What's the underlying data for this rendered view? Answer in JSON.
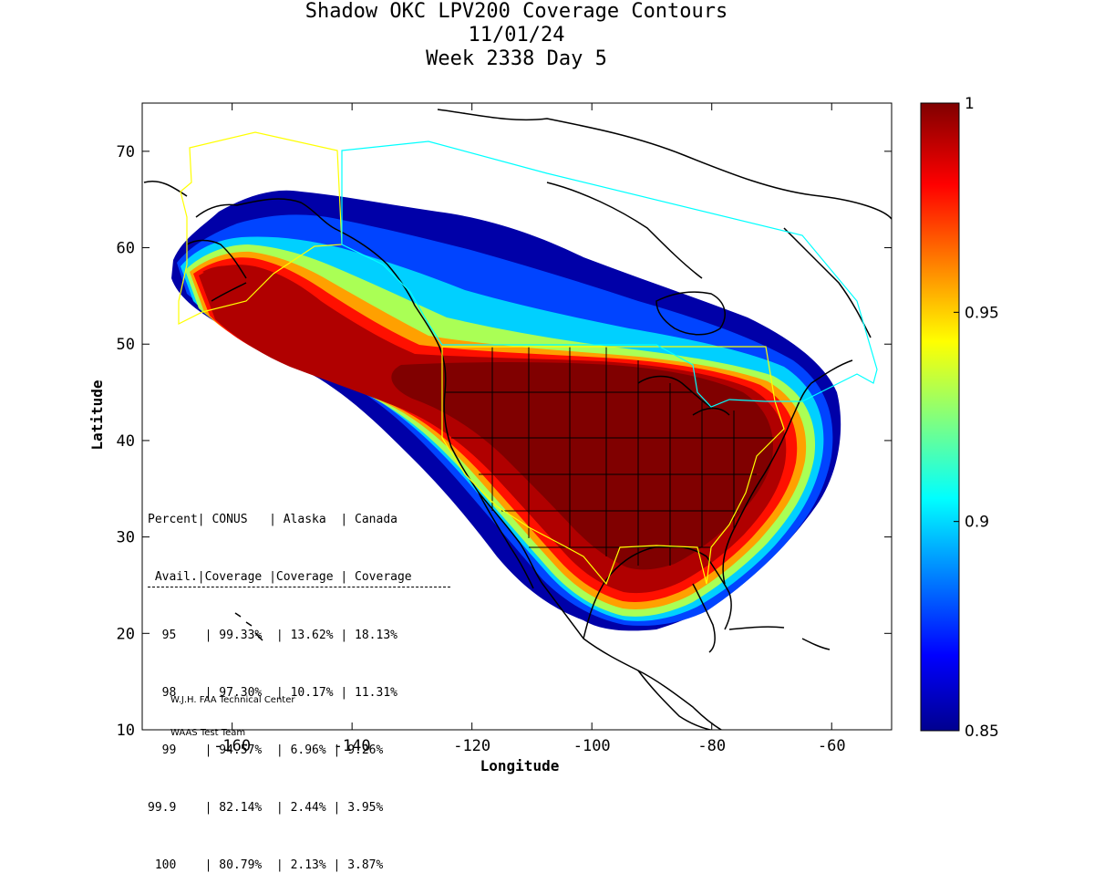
{
  "title": {
    "line1": "Shadow OKC LPV200 Coverage Contours",
    "line2": "11/01/24",
    "line3": "Week 2338 Day 5"
  },
  "axes": {
    "xlabel": "Longitude",
    "ylabel": "Latitude",
    "xlim": [
      -175,
      -50
    ],
    "ylim": [
      10,
      75
    ],
    "xticks": [
      -160,
      -140,
      -120,
      -100,
      -80,
      -60
    ],
    "yticks": [
      10,
      20,
      30,
      40,
      50,
      60,
      70
    ]
  },
  "colorbar": {
    "min": 0.85,
    "max": 1,
    "tick_labels": [
      "1",
      "0.95",
      "0.9",
      "0.85"
    ],
    "tick_values": [
      1,
      0.95,
      0.9,
      0.85
    ],
    "colormap": "jet"
  },
  "stats_table": {
    "header1": [
      "Percent",
      "CONUS",
      "Alaska",
      "Canada"
    ],
    "header2": [
      "Avail.",
      "Coverage",
      "Coverage",
      "Coverage"
    ],
    "rows": [
      {
        "percent": "95",
        "conus": "99.33%",
        "alaska": "13.62%",
        "canada": "18.13%"
      },
      {
        "percent": "98",
        "conus": "97.30%",
        "alaska": "10.17%",
        "canada": "11.31%"
      },
      {
        "percent": "99",
        "conus": "94.57%",
        "alaska": "6.96%",
        "canada": "9.26%"
      },
      {
        "percent": "99.9",
        "conus": "82.14%",
        "alaska": "2.44%",
        "canada": "3.95%"
      },
      {
        "percent": "100",
        "conus": "80.79%",
        "alaska": "2.13%",
        "canada": "3.87%"
      }
    ]
  },
  "credit": {
    "line1": "W.J.H. FAA Technical Center",
    "line2": "WAAS Test Team"
  },
  "colors": {
    "coverage_high": "#800000",
    "coverage_low": "#000080",
    "conus_boundary": "#ffff00",
    "canada_boundary": "#00ffff"
  }
}
